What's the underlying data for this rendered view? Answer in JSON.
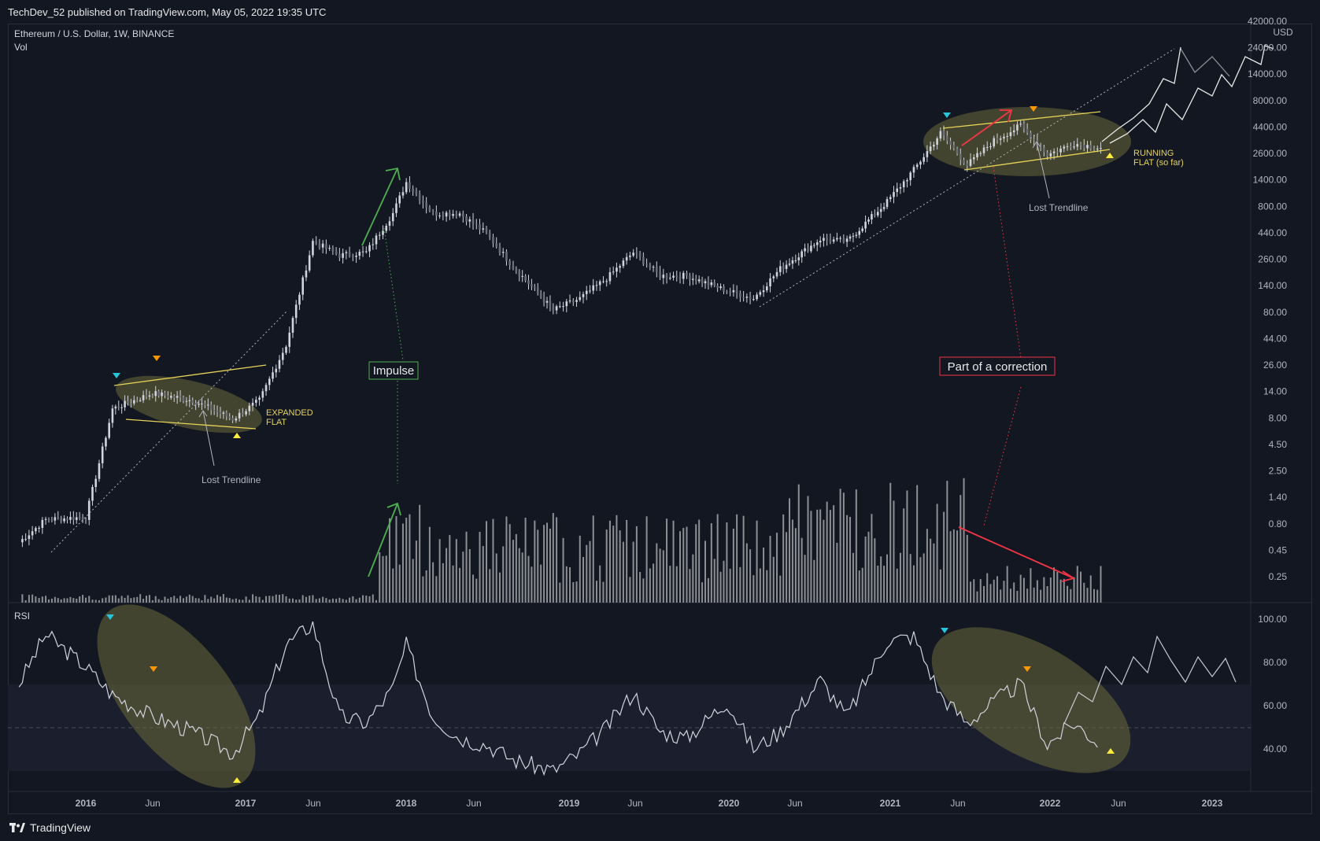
{
  "header": {
    "publish_line": "TechDev_52 published on TradingView.com, May 05, 2022 19:35 UTC"
  },
  "legend": {
    "symbol_line": "Ethereum / U.S. Dollar, 1W, BINANCE",
    "volume_label": "Vol",
    "rsi_label": "RSI"
  },
  "footer": {
    "brand": "TradingView"
  },
  "colors": {
    "background": "#131722",
    "candle": "#d1d4dc",
    "volume": "#8e8f94",
    "grid": "#1e222d",
    "trendline": "#e6d35a",
    "annotation_green": "#4caf50",
    "annotation_red": "#f23645",
    "marker_cyan": "#26c6da",
    "marker_orange": "#ff9800",
    "marker_yellow": "#ffeb3b",
    "ellipse_fill": "#6b6a3a"
  },
  "annotations": {
    "impulse": "Impulse",
    "correction": "Part of a correction",
    "expanded_flat_1": "EXPANDED",
    "expanded_flat_2": "FLAT",
    "running_flat_1": "RUNNING",
    "running_flat_2": "FLAT (so far)",
    "lost_trendline_left": "Lost Trendline",
    "lost_trendline_right": "Lost Trendline"
  },
  "chart_data": [
    {
      "type": "line",
      "title": "Ethereum / U.S. Dollar, 1W, BINANCE",
      "xlabel": "",
      "ylabel": "",
      "y_scale": "log",
      "currency": "USD",
      "y_ticks": [
        "42000.00",
        "24000.00",
        "14000.00",
        "8000.00",
        "4400.00",
        "2600.00",
        "1400.00",
        "800.00",
        "440.00",
        "260.00",
        "140.00",
        "80.00",
        "44.00",
        "26.00",
        "14.00",
        "8.00",
        "4.50",
        "2.50",
        "1.40",
        "0.80",
        "0.45",
        "0.25"
      ],
      "x_ticks": [
        "2016",
        "Jun",
        "2017",
        "Jun",
        "2018",
        "Jun",
        "2019",
        "Jun",
        "2020",
        "Jun",
        "2021",
        "Jun",
        "2022",
        "Jun",
        "2023"
      ],
      "x": [
        "2015-08",
        "2015-10",
        "2016-01",
        "2016-03",
        "2016-06",
        "2016-09",
        "2016-12",
        "2017-02",
        "2017-04",
        "2017-06",
        "2017-08",
        "2017-10",
        "2017-12",
        "2018-01",
        "2018-03",
        "2018-05",
        "2018-07",
        "2018-09",
        "2018-12",
        "2019-02",
        "2019-04",
        "2019-06",
        "2019-08",
        "2019-10",
        "2020-01",
        "2020-03",
        "2020-05",
        "2020-08",
        "2020-10",
        "2021-01",
        "2021-03",
        "2021-05",
        "2021-07",
        "2021-09",
        "2021-11",
        "2022-01",
        "2022-03",
        "2022-05"
      ],
      "series": [
        {
          "name": "Ethereum / U.S. Dollar",
          "values": [
            0.55,
            0.9,
            0.95,
            10,
            14,
            12,
            8,
            12,
            40,
            380,
            280,
            300,
            700,
            1380,
            700,
            700,
            450,
            220,
            85,
            110,
            170,
            300,
            180,
            180,
            130,
            110,
            210,
            400,
            380,
            900,
            1800,
            4000,
            2000,
            3400,
            4700,
            2500,
            3200,
            2900
          ]
        }
      ]
    },
    {
      "type": "line",
      "title": "RSI",
      "y_ticks": [
        "100.00",
        "80.00",
        "60.00",
        "40.00"
      ],
      "ylim": [
        25,
        100
      ],
      "x": [
        "2015-08",
        "2015-10",
        "2016-01",
        "2016-03",
        "2016-06",
        "2016-09",
        "2016-12",
        "2017-02",
        "2017-04",
        "2017-06",
        "2017-08",
        "2017-10",
        "2017-12",
        "2018-01",
        "2018-03",
        "2018-05",
        "2018-07",
        "2018-09",
        "2018-12",
        "2019-02",
        "2019-04",
        "2019-06",
        "2019-08",
        "2019-10",
        "2020-01",
        "2020-03",
        "2020-05",
        "2020-08",
        "2020-10",
        "2021-01",
        "2021-03",
        "2021-05",
        "2021-07",
        "2021-09",
        "2021-11",
        "2022-01",
        "2022-03",
        "2022-05"
      ],
      "series": [
        {
          "name": "RSI",
          "values": [
            70,
            93,
            78,
            65,
            55,
            48,
            38,
            55,
            88,
            98,
            55,
            52,
            68,
            88,
            55,
            45,
            42,
            35,
            30,
            38,
            50,
            66,
            48,
            45,
            62,
            40,
            48,
            72,
            55,
            90,
            92,
            65,
            52,
            62,
            70,
            42,
            52,
            42
          ]
        }
      ]
    }
  ]
}
